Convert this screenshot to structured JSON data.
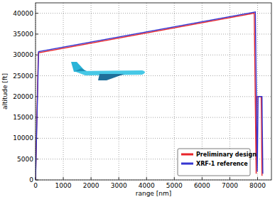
{
  "chart_data": {
    "type": "line",
    "xlabel": "range [nm]",
    "ylabel": "altitude [ft]",
    "series": [
      {
        "name": "Preliminary design",
        "color": "#e8242a",
        "x": [
          0,
          100,
          7880,
          7950,
          7980,
          8130,
          8160
        ],
        "values": [
          0,
          30500,
          40000,
          1500,
          20000,
          20000,
          1000
        ]
      },
      {
        "name": "XRF-1 reference",
        "color": "#3535d0",
        "x": [
          0,
          110,
          7920,
          7990,
          8020,
          8160,
          8190
        ],
        "values": [
          0,
          30800,
          40300,
          2000,
          20000,
          20000,
          1500
        ]
      }
    ],
    "xlim": [
      0,
      8500
    ],
    "xticks": [
      0,
      1000,
      2000,
      3000,
      4000,
      5000,
      6000,
      7000,
      8000
    ],
    "ylim": [
      0,
      42500
    ],
    "yticks": [
      0,
      5000,
      10000,
      15000,
      20000,
      25000,
      30000,
      35000,
      40000
    ],
    "grid": true,
    "legend": "lower right"
  }
}
